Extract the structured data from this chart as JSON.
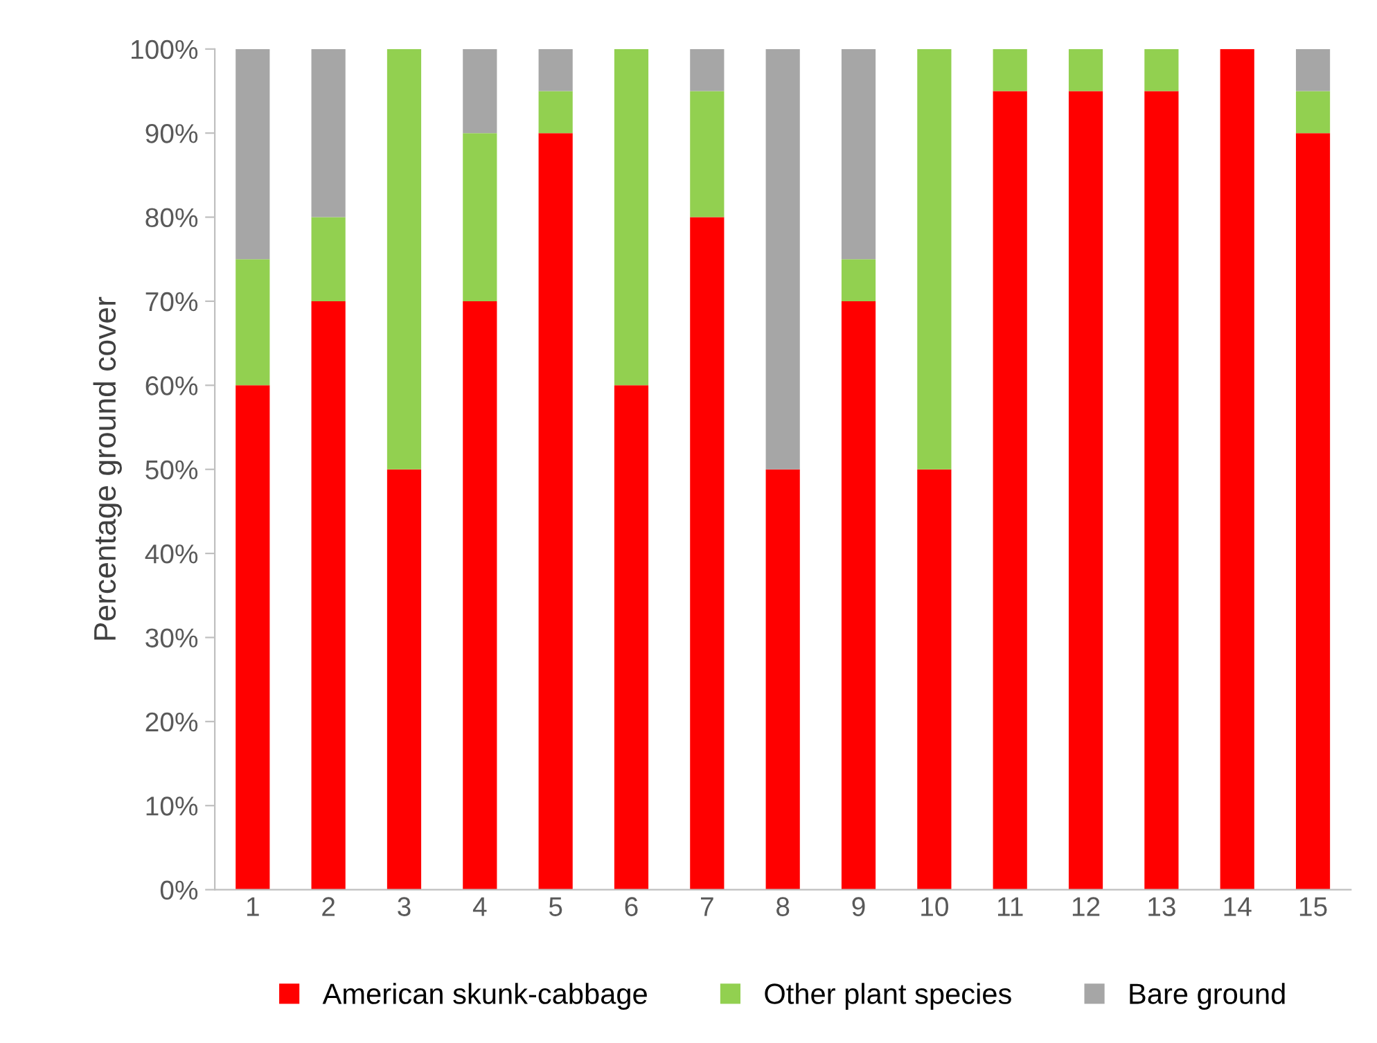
{
  "chart_data": {
    "type": "bar",
    "stacked": true,
    "ylabel": "Percentage ground cover",
    "categories": [
      "1",
      "2",
      "3",
      "4",
      "5",
      "6",
      "7",
      "8",
      "9",
      "10",
      "11",
      "12",
      "13",
      "14",
      "15"
    ],
    "series": [
      {
        "name": "American skunk-cabbage",
        "color": "#ff0000",
        "values": [
          60,
          70,
          50,
          70,
          90,
          60,
          80,
          50,
          70,
          50,
          95,
          95,
          95,
          100,
          90
        ]
      },
      {
        "name": "Other plant species",
        "color": "#92d050",
        "values": [
          15,
          10,
          50,
          20,
          5,
          40,
          15,
          0,
          5,
          50,
          5,
          5,
          5,
          0,
          5
        ]
      },
      {
        "name": "Bare ground",
        "color": "#a6a6a6",
        "values": [
          25,
          20,
          0,
          10,
          5,
          0,
          5,
          50,
          25,
          0,
          0,
          0,
          0,
          0,
          5
        ]
      }
    ],
    "ylim": [
      0,
      100
    ],
    "yticks": [
      {
        "value": 0,
        "label": "0%"
      },
      {
        "value": 10,
        "label": "10%"
      },
      {
        "value": 20,
        "label": "20%"
      },
      {
        "value": 30,
        "label": "30%"
      },
      {
        "value": 40,
        "label": "40%"
      },
      {
        "value": 50,
        "label": "50%"
      },
      {
        "value": 60,
        "label": "60%"
      },
      {
        "value": 70,
        "label": "70%"
      },
      {
        "value": 80,
        "label": "80%"
      },
      {
        "value": 90,
        "label": "90%"
      },
      {
        "value": 100,
        "label": "100%"
      }
    ],
    "grid": false,
    "legend": "bottom"
  }
}
